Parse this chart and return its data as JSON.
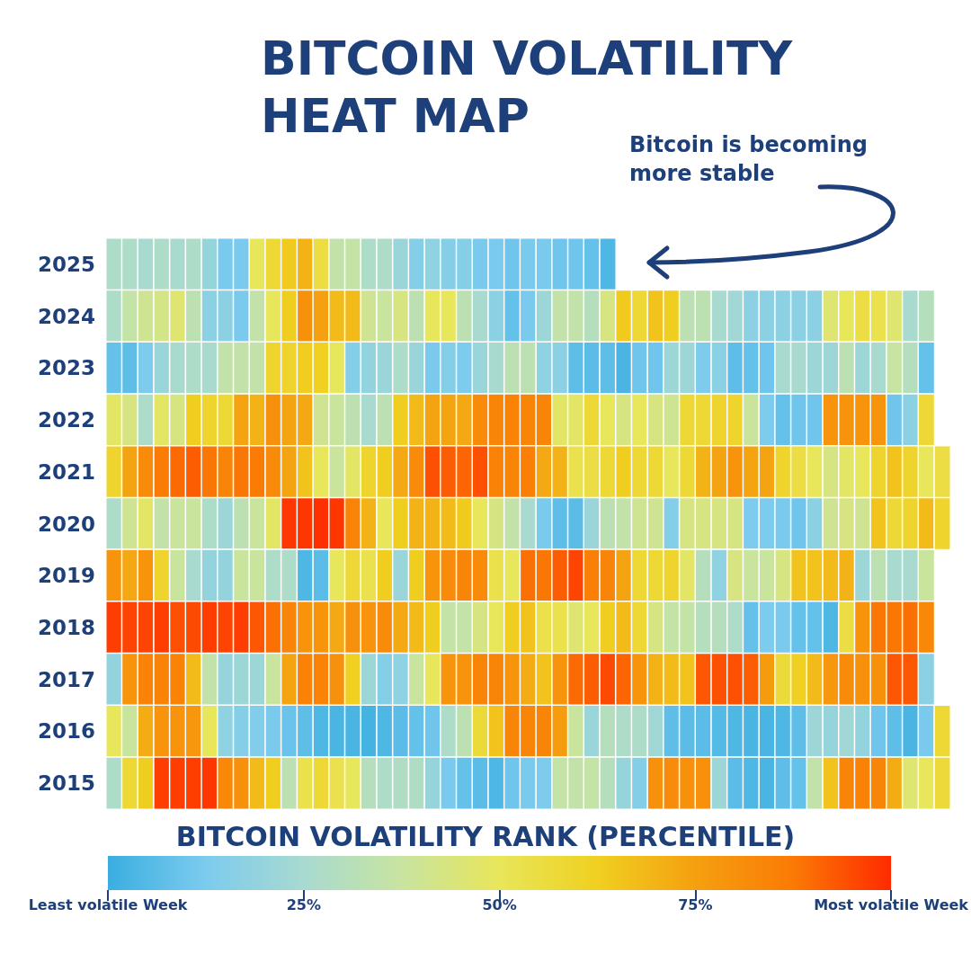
{
  "chart_data": {
    "type": "heatmap",
    "title": "BITCOIN VOLATILITY HEAT MAP",
    "subtitle": "Bitcoin is becoming more stable",
    "clabel": "BITCOIN VOLATILITY RANK (PERCENTILE)",
    "categories": [
      null,
      null,
      null,
      null,
      null,
      null,
      null,
      null,
      null,
      null,
      null,
      null,
      null,
      null,
      null,
      null,
      null,
      null,
      null,
      null,
      null,
      null,
      null,
      null,
      null,
      null,
      null,
      null,
      null,
      null,
      null,
      null,
      null,
      null,
      null,
      null,
      null,
      null,
      null,
      null,
      null,
      null,
      null,
      null,
      null,
      null,
      null,
      null,
      null,
      null,
      null,
      null,
      null
    ],
    "y_categories": [
      "2025",
      "2024",
      "2023",
      "2022",
      "2021",
      "2020",
      "2019",
      "2018",
      "2017",
      "2016",
      "2015"
    ],
    "cells": [
      [
        27,
        27,
        25,
        27,
        25,
        27,
        20,
        12,
        12,
        50,
        58,
        64,
        70,
        55,
        35,
        36,
        27,
        27,
        21,
        15,
        18,
        15,
        15,
        12,
        12,
        10,
        12,
        12,
        10,
        10,
        8,
        4,
        null,
        null,
        null,
        null,
        null,
        null,
        null,
        null,
        null,
        null,
        null,
        null,
        null,
        null,
        null,
        null,
        null,
        null,
        null,
        null,
        null
      ],
      [
        27,
        36,
        40,
        42,
        46,
        33,
        17,
        17,
        12,
        35,
        50,
        63,
        80,
        75,
        68,
        68,
        40,
        38,
        43,
        33,
        50,
        50,
        33,
        25,
        17,
        8,
        12,
        22,
        35,
        35,
        30,
        43,
        64,
        58,
        66,
        63,
        33,
        33,
        25,
        23,
        17,
        17,
        17,
        17,
        17,
        46,
        50,
        55,
        53,
        46,
        25,
        30,
        null
      ],
      [
        8,
        7,
        13,
        21,
        25,
        27,
        25,
        35,
        35,
        35,
        60,
        60,
        63,
        62,
        50,
        15,
        19,
        21,
        27,
        21,
        12,
        15,
        13,
        21,
        25,
        33,
        33,
        18,
        17,
        7,
        6,
        7,
        3,
        10,
        10,
        22,
        22,
        13,
        17,
        7,
        8,
        10,
        25,
        25,
        22,
        22,
        33,
        22,
        25,
        37,
        30,
        8,
        null
      ],
      [
        48,
        43,
        27,
        48,
        43,
        63,
        60,
        58,
        74,
        70,
        80,
        74,
        73,
        40,
        38,
        33,
        25,
        33,
        63,
        68,
        74,
        74,
        73,
        82,
        84,
        85,
        84,
        84,
        48,
        48,
        58,
        50,
        43,
        50,
        43,
        40,
        58,
        58,
        60,
        60,
        38,
        13,
        8,
        10,
        10,
        79,
        79,
        79,
        79,
        10,
        17,
        58,
        null
      ],
      [
        60,
        74,
        82,
        87,
        90,
        92,
        88,
        84,
        88,
        87,
        82,
        74,
        66,
        50,
        38,
        48,
        60,
        63,
        73,
        82,
        94,
        92,
        91,
        94,
        85,
        84,
        86,
        73,
        70,
        53,
        55,
        58,
        63,
        58,
        58,
        50,
        58,
        70,
        74,
        79,
        74,
        74,
        60,
        55,
        50,
        43,
        48,
        50,
        60,
        66,
        60,
        50,
        55
      ],
      [
        27,
        40,
        48,
        35,
        38,
        38,
        27,
        22,
        33,
        38,
        48,
        98,
        98,
        99,
        98,
        84,
        70,
        50,
        63,
        70,
        70,
        68,
        64,
        50,
        43,
        35,
        25,
        12,
        7,
        6,
        21,
        33,
        35,
        40,
        40,
        15,
        43,
        43,
        43,
        43,
        13,
        13,
        12,
        10,
        17,
        40,
        43,
        40,
        66,
        58,
        60,
        68,
        60
      ],
      [
        79,
        73,
        79,
        60,
        38,
        25,
        19,
        19,
        38,
        38,
        27,
        27,
        4,
        6,
        50,
        58,
        53,
        63,
        21,
        63,
        79,
        82,
        84,
        82,
        53,
        50,
        89,
        88,
        92,
        96,
        86,
        84,
        74,
        58,
        58,
        60,
        48,
        30,
        18,
        43,
        38,
        38,
        43,
        66,
        66,
        68,
        70,
        22,
        33,
        25,
        25,
        38,
        null
      ],
      [
        97,
        96,
        96,
        97,
        94,
        95,
        97,
        96,
        97,
        93,
        89,
        84,
        79,
        79,
        73,
        80,
        79,
        82,
        73,
        68,
        63,
        36,
        36,
        43,
        50,
        63,
        66,
        53,
        53,
        46,
        50,
        63,
        68,
        58,
        43,
        36,
        36,
        30,
        30,
        27,
        8,
        13,
        12,
        8,
        8,
        4,
        55,
        79,
        88,
        88,
        89,
        83,
        null
      ],
      [
        19,
        79,
        85,
        85,
        85,
        68,
        35,
        20,
        22,
        22,
        38,
        74,
        85,
        85,
        80,
        62,
        22,
        15,
        18,
        38,
        50,
        79,
        79,
        84,
        84,
        79,
        72,
        66,
        79,
        90,
        92,
        95,
        91,
        79,
        70,
        68,
        66,
        93,
        94,
        94,
        92,
        77,
        57,
        62,
        68,
        78,
        82,
        80,
        80,
        93,
        93,
        17,
        null
      ],
      [
        50,
        38,
        72,
        79,
        79,
        78,
        50,
        18,
        15,
        14,
        12,
        9,
        7,
        4,
        3,
        3,
        2,
        4,
        6,
        8,
        10,
        27,
        33,
        57,
        66,
        84,
        84,
        84,
        76,
        38,
        21,
        30,
        27,
        27,
        23,
        7,
        6,
        6,
        5,
        4,
        3,
        3,
        4,
        7,
        22,
        20,
        23,
        19,
        10,
        7,
        3,
        12,
        58
      ],
      [
        27,
        58,
        63,
        97,
        97,
        97,
        98,
        83,
        80,
        68,
        63,
        33,
        53,
        58,
        53,
        50,
        30,
        27,
        28,
        28,
        20,
        12,
        8,
        6,
        4,
        10,
        12,
        13,
        36,
        35,
        36,
        30,
        20,
        15,
        80,
        82,
        80,
        80,
        22,
        6,
        4,
        3,
        7,
        8,
        35,
        66,
        84,
        85,
        84,
        72,
        46,
        50,
        57
      ]
    ],
    "clim": [
      0,
      100
    ],
    "cticks": [
      {
        "value": 0,
        "label": "Least volatile Week"
      },
      {
        "value": 25,
        "label": "25%"
      },
      {
        "value": 50,
        "label": "50%"
      },
      {
        "value": 75,
        "label": "75%"
      },
      {
        "value": 100,
        "label": "Most volatile Week"
      }
    ],
    "colors": [
      "#3aaee0",
      "#7ccbee",
      "#a8dad0",
      "#c8e4a0",
      "#e8e65a",
      "#f0d020",
      "#f5a010",
      "#fb7a05",
      "#ff2a00"
    ]
  }
}
